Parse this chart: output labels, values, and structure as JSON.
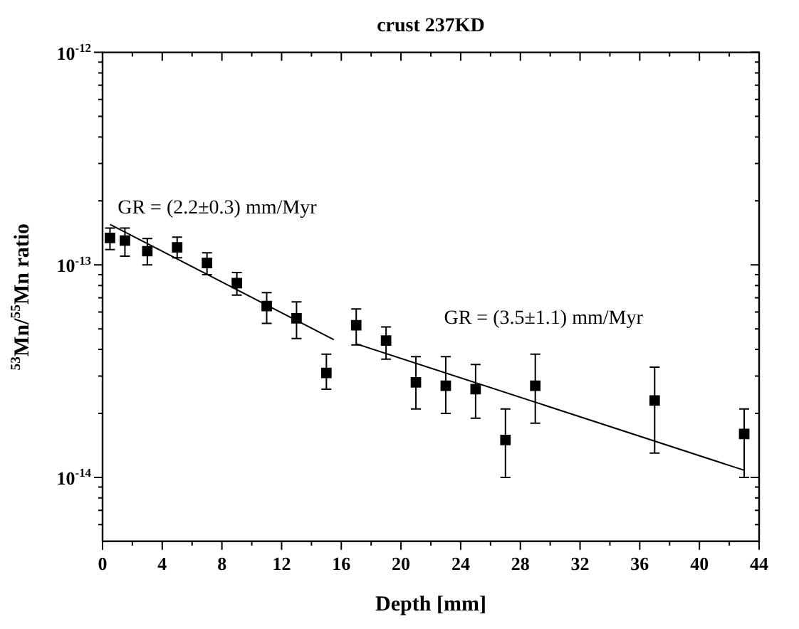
{
  "chart_data": {
    "type": "scatter",
    "title": "crust 237KD",
    "xlabel": "Depth [mm]",
    "ylabel": "$^{53}$Mn/$^{55}$Mn ratio",
    "log": "y",
    "grid": false,
    "legend": false,
    "xlim": [
      0,
      44
    ],
    "xticks": [
      0,
      {
        "value": 2,
        "label": null
      },
      4,
      {
        "value": 6,
        "label": null
      },
      8,
      {
        "value": 10,
        "label": null
      },
      12,
      {
        "value": 14,
        "label": null
      },
      16,
      {
        "value": 18,
        "label": null
      },
      20,
      {
        "value": 22,
        "label": null
      },
      24,
      {
        "value": 26,
        "label": null
      },
      28,
      {
        "value": 30,
        "label": null
      },
      32,
      {
        "value": 34,
        "label": null
      },
      36,
      {
        "value": 38,
        "label": null
      },
      40,
      {
        "value": 42,
        "label": null
      },
      44
    ],
    "ylim": [
      5e-15,
      1e-12
    ],
    "yticks": [
      {
        "value": 6e-15,
        "label": null
      },
      {
        "value": 7e-15,
        "label": null
      },
      {
        "value": 8e-15,
        "label": null
      },
      {
        "value": 9e-15,
        "label": null
      },
      {
        "value": 1e-14,
        "label": "10$^{-14}$"
      },
      {
        "value": 2e-14,
        "label": null
      },
      {
        "value": 3e-14,
        "label": null
      },
      {
        "value": 4e-14,
        "label": null
      },
      {
        "value": 5e-14,
        "label": null
      },
      {
        "value": 6e-14,
        "label": null
      },
      {
        "value": 7e-14,
        "label": null
      },
      {
        "value": 8e-14,
        "label": null
      },
      {
        "value": 9e-14,
        "label": null
      },
      {
        "value": 1e-13,
        "label": "10$^{-13}$"
      },
      {
        "value": 2e-13,
        "label": null
      },
      {
        "value": 3e-13,
        "label": null
      },
      {
        "value": 4e-13,
        "label": null
      },
      {
        "value": 5e-13,
        "label": null
      },
      {
        "value": 6e-13,
        "label": null
      },
      {
        "value": 7e-13,
        "label": null
      },
      {
        "value": 8e-13,
        "label": null
      },
      {
        "value": 9e-13,
        "label": null
      },
      {
        "value": 1e-12,
        "label": "10$^{-12}$"
      }
    ],
    "annotations": [
      "GR = (2.2±0.3) mm/Myr",
      "GR = (3.5±1.1) mm/Myr"
    ],
    "series": [
      {
        "color": "#000000",
        "marker": "square",
        "x": [
          0.5,
          1.5,
          3,
          5,
          7,
          9,
          11,
          13,
          15,
          17,
          19,
          21,
          23,
          25,
          27,
          29,
          37,
          43
        ],
        "values": [
          1.34e-13,
          1.3e-13,
          1.16e-13,
          1.21e-13,
          1.02e-13,
          8.2e-14,
          6.4e-14,
          5.6e-14,
          3.1e-14,
          5.2e-14,
          4.4e-14,
          2.8e-14,
          2.7e-14,
          2.6e-14,
          1.5e-14,
          2.7e-14,
          2.3e-14,
          1.6e-14
        ],
        "errors": [
          [
            1.18e-13,
            1.49e-13
          ],
          [
            1.1e-13,
            1.49e-13
          ],
          [
            1e-13,
            1.33e-13
          ],
          [
            1.08e-13,
            1.35e-13
          ],
          [
            9e-14,
            1.14e-13
          ],
          [
            7.2e-14,
            9.2e-14
          ],
          [
            5.3e-14,
            7.4e-14
          ],
          [
            4.5e-14,
            6.7e-14
          ],
          [
            2.6e-14,
            3.8e-14
          ],
          [
            4.2e-14,
            6.2e-14
          ],
          [
            3.6e-14,
            5.1e-14
          ],
          [
            2.1e-14,
            3.7e-14
          ],
          [
            2e-14,
            3.7e-14
          ],
          [
            1.9e-14,
            3.4e-14
          ],
          [
            1e-14,
            2.1e-14
          ],
          [
            1.8e-14,
            3.8e-14
          ],
          [
            1.3e-14,
            3.3e-14
          ],
          [
            1e-14,
            2.1e-14
          ]
        ]
      },
      {
        "type": "line",
        "marker": "none",
        "color": "#000000",
        "x": [
          0.5,
          15.5
        ],
        "values": [
          1.55e-13,
          4.45e-14
        ]
      },
      {
        "type": "line",
        "marker": "none",
        "color": "#000000",
        "x": [
          17,
          43
        ],
        "values": [
          4.25e-14,
          1.08e-14
        ]
      }
    ]
  }
}
